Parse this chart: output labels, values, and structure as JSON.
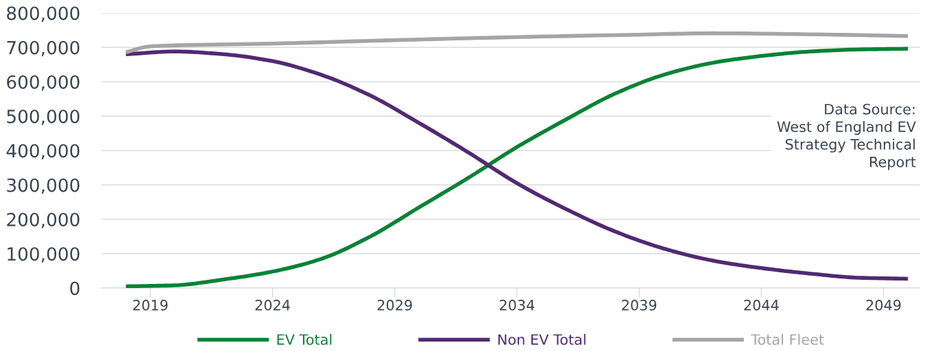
{
  "chart_data": {
    "type": "line",
    "series": [
      {
        "name": "EV Total",
        "color": "#0a8236",
        "x": [
          2018,
          2020,
          2022,
          2024,
          2026,
          2028,
          2030,
          2032,
          2034,
          2036,
          2038,
          2040,
          2042,
          2044,
          2046,
          2048,
          2050
        ],
        "values": [
          5000,
          8000,
          25000,
          48000,
          85000,
          150000,
          235000,
          320000,
          410000,
          490000,
          565000,
          620000,
          655000,
          675000,
          688000,
          694000,
          696000
        ]
      },
      {
        "name": "Non EV Total",
        "color": "#512a72",
        "x": [
          2018,
          2020,
          2022,
          2024,
          2026,
          2028,
          2030,
          2032,
          2034,
          2036,
          2038,
          2040,
          2042,
          2044,
          2046,
          2048,
          2050
        ],
        "values": [
          680000,
          688000,
          680000,
          660000,
          620000,
          560000,
          480000,
          395000,
          305000,
          230000,
          165000,
          115000,
          80000,
          58000,
          42000,
          30000,
          27000
        ]
      },
      {
        "name": "Total Fleet",
        "color": "#a5a5a5",
        "x": [
          2018,
          2019,
          2024,
          2029,
          2034,
          2039,
          2042,
          2046,
          2050
        ],
        "values": [
          686000,
          703000,
          711000,
          721000,
          730000,
          737000,
          741000,
          738000,
          733000
        ]
      }
    ],
    "xlim": [
      2017,
      2050.5
    ],
    "xticks": [
      2019,
      2024,
      2029,
      2034,
      2039,
      2044,
      2049
    ],
    "ylim": [
      0,
      800000
    ],
    "yticks": [
      {
        "value": 0,
        "label": "0"
      },
      {
        "value": 100000,
        "label": "100,000"
      },
      {
        "value": 200000,
        "label": "200,000"
      },
      {
        "value": 300000,
        "label": "300,000"
      },
      {
        "value": 400000,
        "label": "400,000"
      },
      {
        "value": 500000,
        "label": "500,000"
      },
      {
        "value": 600000,
        "label": "600,000"
      },
      {
        "value": 700000,
        "label": "700,000"
      },
      {
        "value": 800000,
        "label": "800,000"
      }
    ],
    "grid": "y",
    "legend": "bottom",
    "marker": "none",
    "line_style": "solid",
    "annotations": [
      "Data Source:\nWest of England EV\nStrategy Technical\nReport"
    ]
  }
}
